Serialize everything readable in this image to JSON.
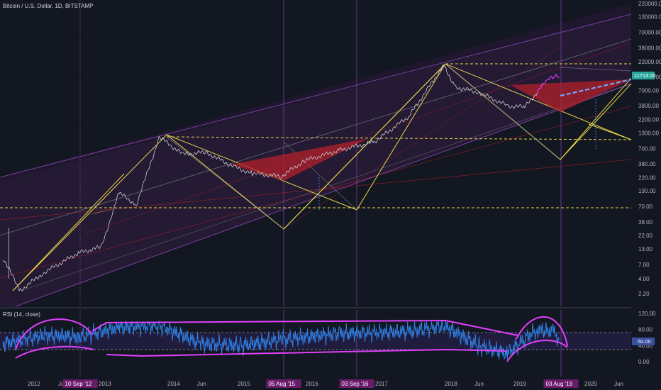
{
  "header": {
    "symbol_title": "Bitcoin / U.S. Dollar, 1D, BITSTAMP"
  },
  "rsi_panel": {
    "title": "RSI (14, close)",
    "current_value": "50.00"
  },
  "price_badge": {
    "value": "11713.00"
  },
  "colors": {
    "background": "#131722",
    "channel_fill": "#3a1f4a",
    "yellow_lines": "#e8d64a",
    "red_fill": "#b2202a",
    "magenta": "#e040fb",
    "rsi_line": "#2f7de1",
    "price_badge": "#26a69a",
    "marker_bg": "#6a1b6a"
  },
  "chart_data": [
    {
      "type": "line",
      "name": "price",
      "y_scale": "log",
      "y_ticks": [
        "220000.00",
        "130000.00",
        "70000.00",
        "38000.00",
        "22000.00",
        "12000.00",
        "7000.00",
        "3800.00",
        "2200.00",
        "1300.00",
        "700.00",
        "380.00",
        "220.00",
        "130.00",
        "70.00",
        "38.00",
        "22.00",
        "13.00",
        "7.00",
        "4.00",
        "2.20"
      ],
      "x_ticks": [
        "2012",
        "Jun",
        "2013",
        "2014",
        "Jun",
        "2015",
        "2016",
        "Jun",
        "2017",
        "2018",
        "Jun",
        "2019",
        "Jun",
        "2020",
        "Jun"
      ],
      "x_markers": [
        "10 Sep '12",
        "05 Aug '15",
        "03 Sep '16",
        "03 Aug '19"
      ],
      "values": [
        {
          "x": "2011-08",
          "y": 9
        },
        {
          "x": "2011-11",
          "y": 2.5
        },
        {
          "x": "2012-03",
          "y": 5
        },
        {
          "x": "2012-09",
          "y": 11
        },
        {
          "x": "2013-01",
          "y": 14
        },
        {
          "x": "2013-04",
          "y": 120
        },
        {
          "x": "2013-07",
          "y": 75
        },
        {
          "x": "2013-11",
          "y": 1100
        },
        {
          "x": "2014-03",
          "y": 550
        },
        {
          "x": "2014-07",
          "y": 600
        },
        {
          "x": "2014-12",
          "y": 330
        },
        {
          "x": "2015-03",
          "y": 260
        },
        {
          "x": "2015-08",
          "y": 230
        },
        {
          "x": "2015-12",
          "y": 430
        },
        {
          "x": "2016-06",
          "y": 650
        },
        {
          "x": "2016-12",
          "y": 900
        },
        {
          "x": "2017-06",
          "y": 2500
        },
        {
          "x": "2017-12",
          "y": 19000
        },
        {
          "x": "2018-02",
          "y": 8000
        },
        {
          "x": "2018-06",
          "y": 6500
        },
        {
          "x": "2018-11",
          "y": 3800
        },
        {
          "x": "2019-02",
          "y": 3600
        },
        {
          "x": "2019-06",
          "y": 11000
        },
        {
          "x": "2019-07",
          "y": 12500
        },
        {
          "x": "2019-08",
          "y": 11713
        }
      ]
    },
    {
      "type": "line",
      "name": "RSI (14, close)",
      "y_ticks": [
        "120.00",
        "80.00",
        "50.00",
        "40.00",
        "0.00"
      ],
      "ylim": [
        -10,
        130
      ],
      "values": [
        {
          "x": "2011-08",
          "y": 45
        },
        {
          "x": "2012-03",
          "y": 65
        },
        {
          "x": "2012-09",
          "y": 62
        },
        {
          "x": "2013-04",
          "y": 85
        },
        {
          "x": "2013-11",
          "y": 90
        },
        {
          "x": "2014-06",
          "y": 45
        },
        {
          "x": "2015-01",
          "y": 40
        },
        {
          "x": "2015-08",
          "y": 55
        },
        {
          "x": "2016-06",
          "y": 70
        },
        {
          "x": "2017-06",
          "y": 75
        },
        {
          "x": "2017-12",
          "y": 90
        },
        {
          "x": "2018-06",
          "y": 40
        },
        {
          "x": "2018-11",
          "y": 20
        },
        {
          "x": "2019-04",
          "y": 80
        },
        {
          "x": "2019-07",
          "y": 75
        },
        {
          "x": "2019-08",
          "y": 50
        }
      ]
    }
  ]
}
